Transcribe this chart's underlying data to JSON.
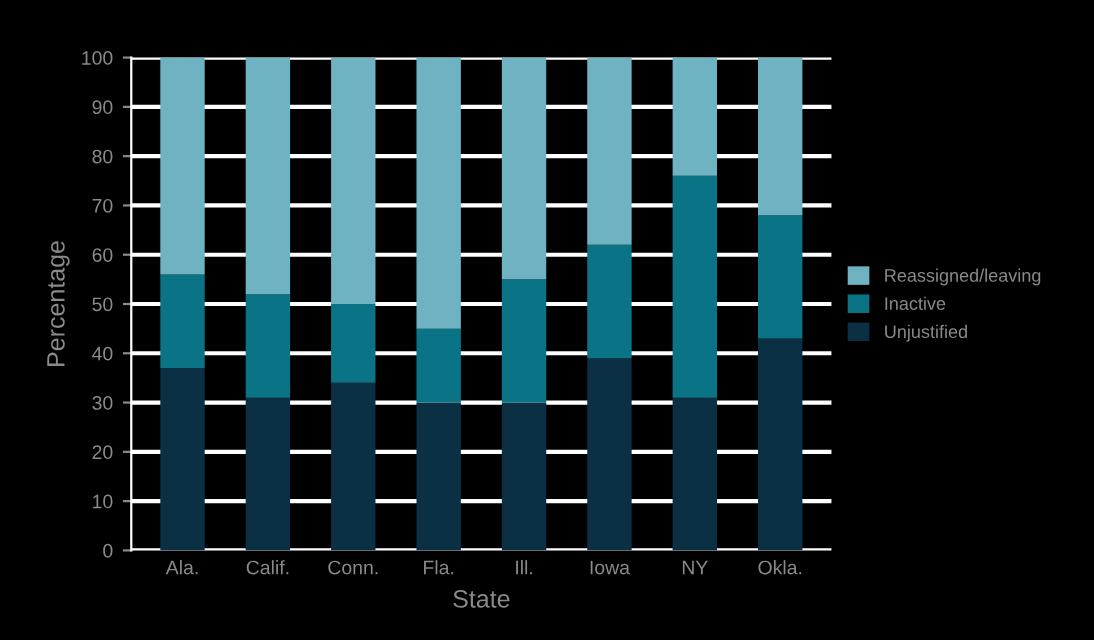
{
  "chart_data": {
    "type": "bar",
    "stacked": true,
    "xlabel": "State",
    "ylabel": "Percentage",
    "categories": [
      "Ala.",
      "Calif.",
      "Conn.",
      "Fla.",
      "Ill.",
      "Iowa",
      "NY",
      "Okla."
    ],
    "series": [
      {
        "name": "Unjustified",
        "color": "#0b3044",
        "values": [
          37,
          31,
          34,
          30,
          30,
          39,
          31,
          43
        ]
      },
      {
        "name": "Inactive",
        "color": "#0a7385",
        "values": [
          19,
          21,
          16,
          15,
          25,
          23,
          45,
          25
        ]
      },
      {
        "name": "Reassigned/leaving",
        "color": "#6fb3c2",
        "values": [
          44,
          48,
          50,
          55,
          45,
          38,
          24,
          32
        ]
      }
    ],
    "ylim": [
      0,
      100
    ],
    "yticks": [
      0,
      10,
      20,
      30,
      40,
      50,
      60,
      70,
      80,
      90,
      100
    ],
    "grid": "y",
    "legend": "right"
  }
}
